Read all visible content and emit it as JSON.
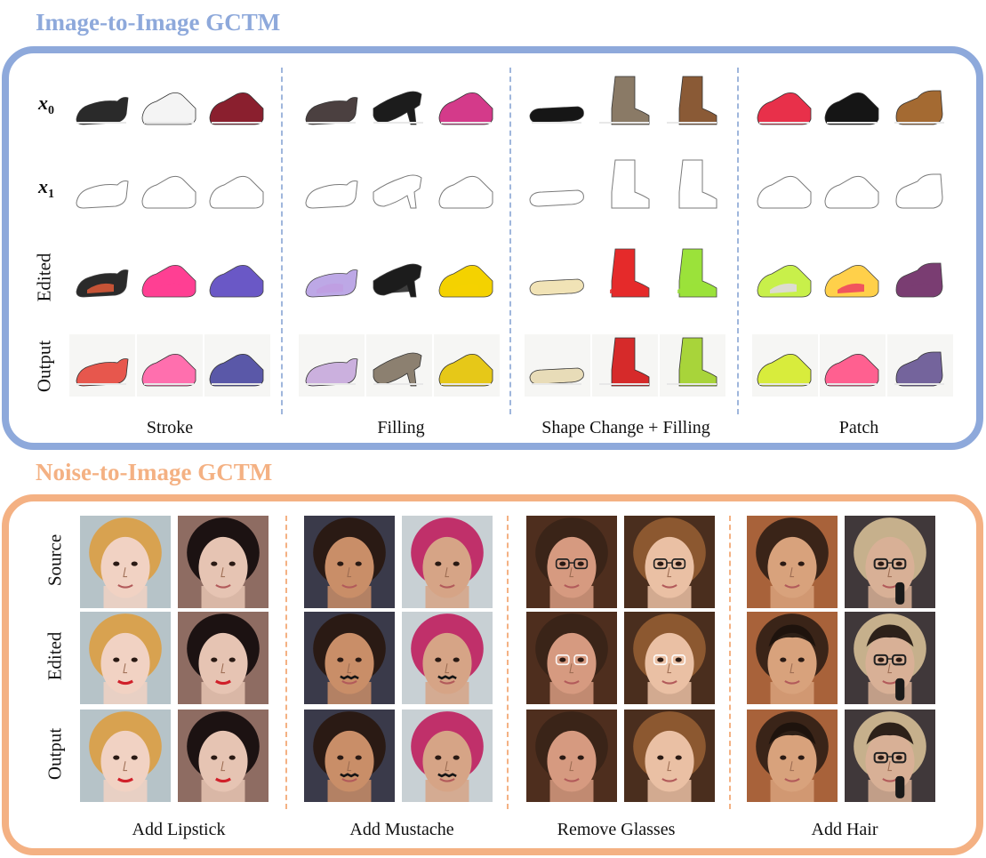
{
  "top": {
    "title": "Image-to-Image GCTM",
    "rows": [
      {
        "key": "x0",
        "symbol": "x",
        "subscript": "0"
      },
      {
        "key": "x1",
        "symbol": "x",
        "subscript": "1"
      },
      {
        "key": "edited",
        "label": "Edited"
      },
      {
        "key": "output",
        "label": "Output"
      }
    ],
    "columns": [
      "Stroke",
      "Filling",
      "Shape Change + Filling",
      "Patch"
    ],
    "colors": {
      "border": "#8ea9db",
      "title": "#8ea9db"
    },
    "shoes": [
      {
        "shape": "flat",
        "colors": [
          "#2a2a2a",
          "#2a2a2a",
          "#e05a38",
          "#ffd0d0",
          "#e7574d"
        ]
      },
      {
        "shape": "sneaker",
        "colors": [
          "#f4f4f4",
          "#ff3f93",
          "#ff3f93",
          "#ffb0dc",
          "#ff6fae"
        ]
      },
      {
        "shape": "sneaker",
        "colors": [
          "#8a1f2e",
          "#6a58c6",
          "#6a58c6",
          "#4d4eb0",
          "#5a58a8"
        ]
      },
      {
        "shape": "flat",
        "colors": [
          "#4b4040",
          "#bda8e6",
          "#c09ee0",
          "#cfb8e6",
          "#cbb0de"
        ]
      },
      {
        "shape": "heel",
        "colors": [
          "#1c1c1c",
          "#1c1c1c",
          "#1c1c1c",
          "#8c7a6c",
          "#8c8070"
        ]
      },
      {
        "shape": "sneaker",
        "colors": [
          "#d43a8a",
          "#f4d200",
          "#f4d200",
          "#f4dc20",
          "#e6c818"
        ]
      },
      {
        "shape": "sandal",
        "colors": [
          "#161616",
          "#f1e3b6",
          "#f1e3b6",
          "#efe3c0",
          "#e8dcb8"
        ]
      },
      {
        "shape": "tallboot",
        "colors": [
          "#8a7a66",
          "#e52a2a",
          "#e52a2a",
          "#d82a2a",
          "#d62a2a"
        ]
      },
      {
        "shape": "tallboot",
        "colors": [
          "#8a5a36",
          "#9be23a",
          "#9be23a",
          "#a0d83a",
          "#a8d43a"
        ]
      },
      {
        "shape": "sneaker",
        "colors": [
          "#e8304a",
          "#c8f04a",
          "#e0d8e8",
          "#d8f040",
          "#d8ec3c"
        ]
      },
      {
        "shape": "sneaker",
        "colors": [
          "#151515",
          "#ffd04a",
          "#ef4060",
          "#ff5a7a",
          "#ff6090"
        ]
      },
      {
        "shape": "clog",
        "colors": [
          "#a46a32",
          "#7a3d72",
          "#7a3d72",
          "#6c5a94",
          "#74649c"
        ]
      }
    ]
  },
  "bottom": {
    "title": "Noise-to-Image GCTM",
    "rows": [
      "Source",
      "Edited",
      "Output"
    ],
    "columns": [
      "Add Lipstick",
      "Add Mustache",
      "Remove Glasses",
      "Add Hair"
    ],
    "colors": {
      "border": "#f4b183",
      "title": "#f4b183"
    },
    "faces": [
      {
        "skin": "#f1d2c3",
        "hair": "#d8a250",
        "bg": "#b6c3c8"
      },
      {
        "skin": "#e6c4b3",
        "hair": "#1c1212",
        "bg": "#8e6c62"
      },
      {
        "skin": "#c98e68",
        "hair": "#2a1a14",
        "bg": "#3a3a4a"
      },
      {
        "skin": "#d6a486",
        "hair": "#c0306a",
        "bg": "#c8d0d4"
      },
      {
        "skin": "#d69a80",
        "hair": "#3a2418",
        "bg": "#4e2e1e"
      },
      {
        "skin": "#eac0a4",
        "hair": "#8c5830",
        "bg": "#4a2e1e"
      },
      {
        "skin": "#d8a27c",
        "hair": "#3a2418",
        "bg": "#a8623a"
      },
      {
        "skin": "#d8b096",
        "hair": "#c6b08c",
        "bg": "#40383a"
      }
    ]
  }
}
